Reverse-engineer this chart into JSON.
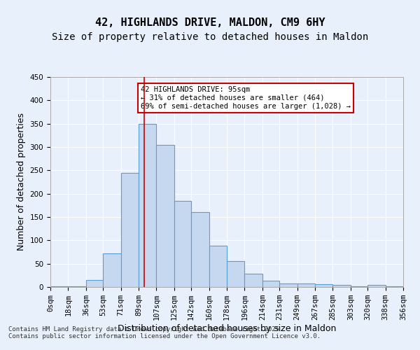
{
  "title_line1": "42, HIGHLANDS DRIVE, MALDON, CM9 6HY",
  "title_line2": "Size of property relative to detached houses in Maldon",
  "xlabel": "Distribution of detached houses by size in Maldon",
  "ylabel": "Number of detached properties",
  "footnote": "Contains HM Land Registry data © Crown copyright and database right 2025.\nContains public sector information licensed under the Open Government Licence v3.0.",
  "bins": [
    0,
    18,
    36,
    53,
    71,
    89,
    107,
    125,
    142,
    160,
    178,
    196,
    214,
    231,
    249,
    267,
    285,
    303,
    320,
    338,
    356
  ],
  "bin_labels": [
    "0sqm",
    "18sqm",
    "36sqm",
    "53sqm",
    "71sqm",
    "89sqm",
    "107sqm",
    "125sqm",
    "142sqm",
    "160sqm",
    "178sqm",
    "196sqm",
    "214sqm",
    "231sqm",
    "249sqm",
    "267sqm",
    "285sqm",
    "303sqm",
    "320sqm",
    "338sqm",
    "356sqm"
  ],
  "counts": [
    1,
    2,
    15,
    72,
    245,
    350,
    305,
    185,
    160,
    88,
    55,
    28,
    14,
    7,
    7,
    6,
    4,
    1,
    4,
    1
  ],
  "bar_color": "#c5d8f0",
  "bar_edge_color": "#5a9fd4",
  "vline_x": 95,
  "vline_color": "#cc0000",
  "annotation_text": "42 HIGHLANDS DRIVE: 95sqm\n← 31% of detached houses are smaller (464)\n69% of semi-detached houses are larger (1,028) →",
  "annotation_box_color": "#cc0000",
  "annotation_text_color": "#000000",
  "ylim": [
    0,
    450
  ],
  "yticks": [
    0,
    50,
    100,
    150,
    200,
    250,
    300,
    350,
    400,
    450
  ],
  "background_color": "#e8f0fb",
  "plot_bg_color": "#e8f0fb",
  "grid_color": "#ffffff",
  "title_fontsize": 11,
  "subtitle_fontsize": 10,
  "axis_label_fontsize": 9,
  "tick_fontsize": 7.5,
  "annotation_fontsize": 7.5
}
